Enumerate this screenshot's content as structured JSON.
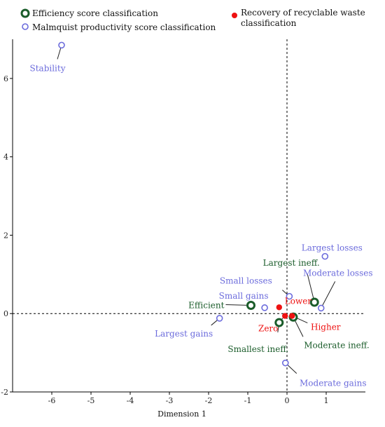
{
  "chart_data": {
    "type": "scatter",
    "xlabel": "Dimension 1",
    "ylabel": "",
    "xlim": [
      -7,
      2
    ],
    "ylim": [
      -2,
      7
    ],
    "x_ticks": [
      -6,
      -5,
      -4,
      -3,
      -2,
      -1,
      0,
      1
    ],
    "y_ticks": [
      -2,
      0,
      2,
      4,
      6
    ],
    "tick_labels_x": [
      "-6",
      "-5",
      "-4",
      "-3",
      "-2",
      "-1",
      "0",
      "1"
    ],
    "tick_labels_y": [
      "-2",
      "0",
      "2",
      "4",
      "6"
    ],
    "reference_lines": {
      "x": 0,
      "y": 0,
      "style": "dashed"
    },
    "legend": [
      {
        "label": "Efficiency score classification",
        "marker": "ring-thick",
        "color": "#1a5c2a"
      },
      {
        "label": "Malmquist productivity score classification",
        "marker": "ring-thin",
        "color": "#6b6bdc"
      },
      {
        "label": "Recovery of recyclable waste classification",
        "marker": "dot",
        "color": "#ee1111"
      }
    ],
    "series": [
      {
        "name": "Efficiency score classification",
        "color": "#1a5c2a",
        "points": [
          {
            "label": "Efficient",
            "x": -0.92,
            "y": 0.21
          },
          {
            "label": "Largest ineff.",
            "x": 0.7,
            "y": 0.29
          },
          {
            "label": "Smallest ineff.",
            "x": -0.2,
            "y": -0.23
          },
          {
            "label": "Moderate ineff.",
            "x": 0.16,
            "y": -0.09
          }
        ]
      },
      {
        "name": "Malmquist productivity score classification",
        "color": "#6b6bdc",
        "points": [
          {
            "label": "Stability",
            "x": -5.75,
            "y": 6.85
          },
          {
            "label": "Largest losses",
            "x": 0.97,
            "y": 1.46
          },
          {
            "label": "Moderate losses",
            "x": 0.87,
            "y": 0.14
          },
          {
            "label": "Small losses",
            "x": 0.06,
            "y": 0.44
          },
          {
            "label": "Small gains",
            "x": -0.57,
            "y": 0.15
          },
          {
            "label": "Largest gains",
            "x": -1.72,
            "y": -0.12
          },
          {
            "label": "Moderate gains",
            "x": -0.04,
            "y": -1.26
          }
        ]
      },
      {
        "name": "Recovery of recyclable waste classification",
        "color": "#ee1111",
        "points": [
          {
            "label": "Lower",
            "x": -0.2,
            "y": 0.16
          },
          {
            "label": "Zero",
            "x": -0.05,
            "y": -0.06
          },
          {
            "label": "Higher",
            "x": 0.13,
            "y": -0.06
          }
        ]
      }
    ]
  }
}
